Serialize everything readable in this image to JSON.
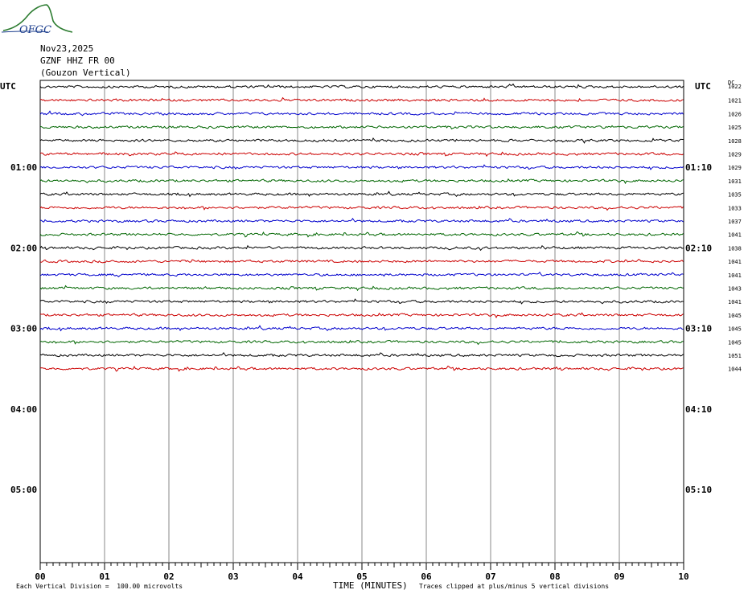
{
  "logo": {
    "text": "OFGC"
  },
  "header": {
    "date": "Nov23,2025",
    "station": "GZNF HHZ FR 00",
    "location": "(Gouzon Vertical)"
  },
  "chart_data": {
    "type": "line",
    "title": "Nov23,2025 GZNF HHZ FR 00 (Gouzon Vertical)",
    "left_axis_label": "UTC",
    "right_axis_label": "UTC",
    "right_header": "DC",
    "left_time_labels": [
      "01:00",
      "02:00",
      "03:00",
      "04:00",
      "05:00"
    ],
    "right_time_labels": [
      "01:10",
      "02:10",
      "03:10",
      "04:10",
      "05:10"
    ],
    "x_ticks": [
      "00",
      "01",
      "02",
      "03",
      "04",
      "05",
      "06",
      "07",
      "08",
      "09",
      "10"
    ],
    "xlabel": "TIME (MINUTES)",
    "xlim": [
      0,
      10
    ],
    "rows_per_hour": 6,
    "trace_colors": [
      "#000000",
      "#cc0000",
      "#0000cc",
      "#006600"
    ],
    "dc_offsets": [
      "1022",
      "1021",
      "1026",
      "1025",
      "1028",
      "1029",
      "1029",
      "1031",
      "1035",
      "1033",
      "1037",
      "1041",
      "1038",
      "1041",
      "1041",
      "1043",
      "1041",
      "1045",
      "1045",
      "1045",
      "1051",
      "1044"
    ],
    "scale_note": "Each Vertical Division =  100.00 microvolts",
    "clip_note": "Traces clipped at plus/minus 5 vertical divisions"
  }
}
